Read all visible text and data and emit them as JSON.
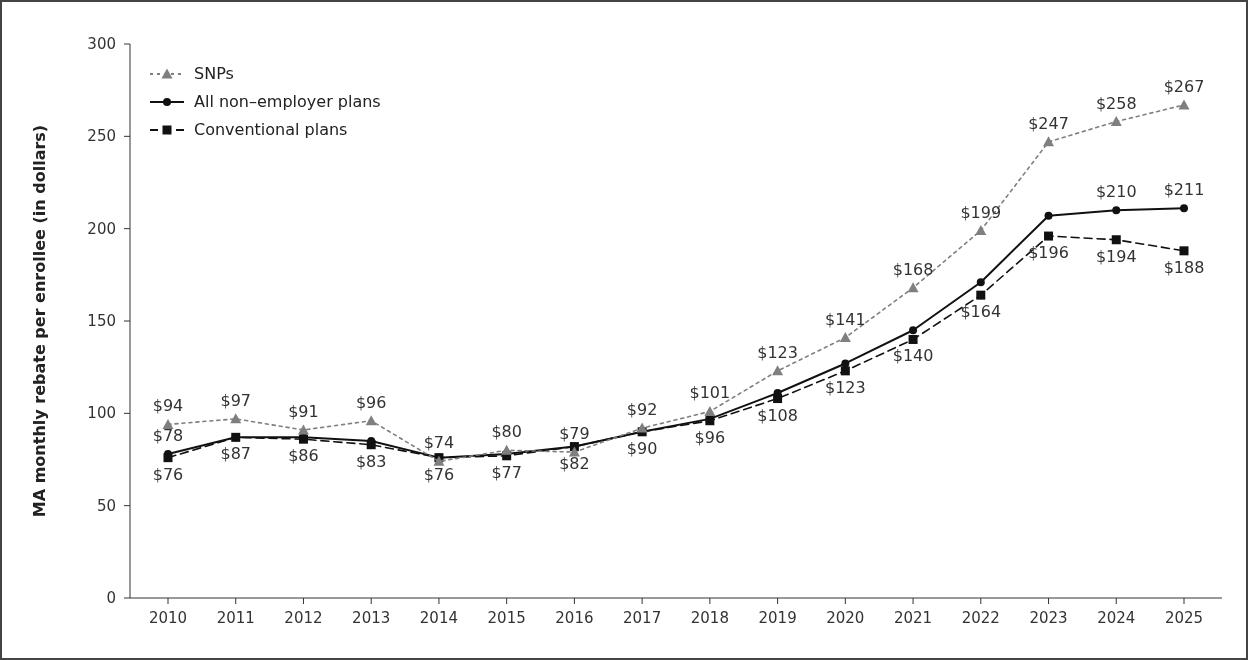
{
  "chart_data": {
    "type": "line",
    "ylabel": "MA monthly rebate per enrollee (in dollars)",
    "categories": [
      "2010",
      "2011",
      "2012",
      "2013",
      "2014",
      "2015",
      "2016",
      "2017",
      "2018",
      "2019",
      "2020",
      "2021",
      "2022",
      "2023",
      "2024",
      "2025"
    ],
    "ylim": [
      0,
      300
    ],
    "yticks": [
      0,
      50,
      100,
      150,
      200,
      250,
      300
    ],
    "grid": false,
    "legend": "top left",
    "series": [
      {
        "name": "SNPs",
        "color": "#7f7f7f",
        "marker": "triangle",
        "line_style": "dotted",
        "values": [
          94,
          97,
          91,
          96,
          74,
          80,
          79,
          92,
          101,
          123,
          141,
          168,
          199,
          247,
          258,
          267
        ],
        "value_labels": [
          "$94",
          "$97",
          "$91",
          "$96",
          "$74",
          "$80",
          "$79",
          "$92",
          "$101",
          "$123",
          "$141",
          "$168",
          "$199",
          "$247",
          "$258",
          "$267"
        ]
      },
      {
        "name": "All non–employer plans",
        "color": "#111111",
        "marker": "circle",
        "line_style": "solid",
        "values": [
          78,
          87,
          87,
          85,
          76,
          78,
          82,
          90,
          97,
          111,
          127,
          145,
          171,
          207,
          210,
          211
        ],
        "value_labels": [
          "$78",
          null,
          null,
          null,
          null,
          null,
          null,
          null,
          null,
          null,
          null,
          null,
          null,
          null,
          "$210",
          "$211"
        ]
      },
      {
        "name": "Conventional plans",
        "color": "#111111",
        "marker": "square",
        "line_style": "dashed",
        "values": [
          76,
          87,
          86,
          83,
          76,
          77,
          82,
          90,
          96,
          108,
          123,
          140,
          164,
          196,
          194,
          188
        ],
        "value_labels": [
          "$76",
          "$87",
          "$86",
          "$83",
          "$76",
          "$77",
          "$82",
          "$90",
          "$96",
          "$108",
          "$123",
          "$140",
          "$164",
          "$196",
          "$194",
          "$188"
        ]
      }
    ]
  }
}
